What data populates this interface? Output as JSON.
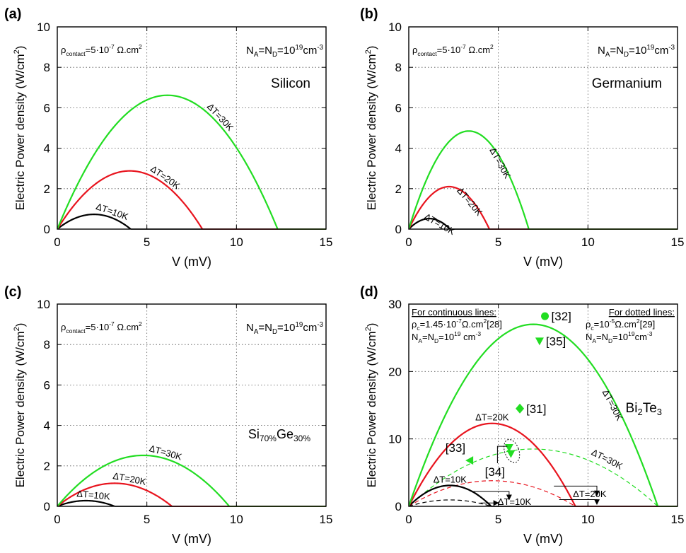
{
  "chart_data": [
    {
      "panel": "(a)",
      "type": "line",
      "xlabel": "V (mV)",
      "ylabel": "Electric Power density (W/cm²)",
      "xlim": [
        0,
        15
      ],
      "ylim": [
        0,
        10
      ],
      "xticks": [
        0,
        5,
        10,
        15
      ],
      "yticks": [
        0,
        2,
        4,
        6,
        8,
        10
      ],
      "grid": true,
      "annotations": {
        "contact": {
          "pre": "ρ",
          "sub": "contact",
          "post": "=5·10",
          "sup": "-7",
          "tail": " Ω.cm",
          "sup2": "2"
        },
        "doping": {
          "a": "N",
          "a_sub": "A",
          "b": "=N",
          "b_sub": "D",
          "c": "=10",
          "c_sup": "19",
          "d": "cm",
          "d_sup": "-3"
        },
        "material": "Silicon"
      },
      "series": [
        {
          "label": "ΔT=10K",
          "color": "#000000",
          "style": "solid",
          "x0": 0,
          "x1": 4.1,
          "peak": 0.73
        },
        {
          "label": "ΔT=20K",
          "color": "#e8141e",
          "style": "solid",
          "x0": 0,
          "x1": 8.1,
          "peak": 2.88
        },
        {
          "label": "ΔT=30K",
          "color": "#22dd22",
          "style": "solid",
          "x0": 0,
          "x1": 12.3,
          "peak": 6.62
        }
      ]
    },
    {
      "panel": "(b)",
      "type": "line",
      "xlabel": "V (mV)",
      "ylabel": "Electric Power density (W/cm²)",
      "xlim": [
        0,
        15
      ],
      "ylim": [
        0,
        10
      ],
      "xticks": [
        0,
        5,
        10,
        15
      ],
      "yticks": [
        0,
        2,
        4,
        6,
        8,
        10
      ],
      "grid": true,
      "annotations": {
        "contact": {
          "pre": "ρ",
          "sub": "contact",
          "post": "=5·10",
          "sup": "-7",
          "tail": " Ω.cm",
          "sup2": "2"
        },
        "doping": {
          "a": "N",
          "a_sub": "A",
          "b": "=N",
          "b_sub": "D",
          "c": "=10",
          "c_sup": "19",
          "d": "cm",
          "d_sup": "-3"
        },
        "material": "Germanium"
      },
      "series": [
        {
          "label": "ΔT=10K",
          "color": "#000000",
          "style": "solid",
          "x0": 0,
          "x1": 2.3,
          "peak": 0.52
        },
        {
          "label": "ΔT=20K",
          "color": "#e8141e",
          "style": "solid",
          "x0": 0,
          "x1": 4.5,
          "peak": 2.1
        },
        {
          "label": "ΔT=30K",
          "color": "#22dd22",
          "style": "solid",
          "x0": 0,
          "x1": 6.7,
          "peak": 4.85
        }
      ]
    },
    {
      "panel": "(c)",
      "type": "line",
      "xlabel": "V (mV)",
      "ylabel": "Electric Power density (W/cm²)",
      "xlim": [
        0,
        15
      ],
      "ylim": [
        0,
        10
      ],
      "xticks": [
        0,
        5,
        10,
        15
      ],
      "yticks": [
        0,
        2,
        4,
        6,
        8,
        10
      ],
      "grid": true,
      "annotations": {
        "contact": {
          "pre": "ρ",
          "sub": "contact",
          "post": "=5·10",
          "sup": "-7",
          "tail": " Ω.cm",
          "sup2": "2"
        },
        "doping": {
          "a": "N",
          "a_sub": "A",
          "b": "=N",
          "b_sub": "D",
          "c": "=10",
          "c_sup": "19",
          "d": "cm",
          "d_sup": "-3"
        },
        "material": {
          "a": "Si",
          "a_sub": "70%",
          "b": "Ge",
          "b_sub": "30%"
        }
      },
      "series": [
        {
          "label": "ΔT=10K",
          "color": "#000000",
          "style": "solid",
          "x0": 0,
          "x1": 3.2,
          "peak": 0.28
        },
        {
          "label": "ΔT=20K",
          "color": "#e8141e",
          "style": "solid",
          "x0": 0,
          "x1": 6.4,
          "peak": 1.14
        },
        {
          "label": "ΔT=30K",
          "color": "#22dd22",
          "style": "solid",
          "x0": 0,
          "x1": 9.6,
          "peak": 2.52
        }
      ]
    },
    {
      "panel": "(d)",
      "type": "line",
      "xlabel": "V (mV)",
      "ylabel": "Electric Power density (W/cm²)",
      "xlim": [
        0,
        15
      ],
      "ylim": [
        0,
        30
      ],
      "xticks": [
        0,
        5,
        10,
        15
      ],
      "yticks": [
        0,
        10,
        20,
        30
      ],
      "grid": true,
      "annotations": {
        "continuous_head": "For continuous lines:",
        "continuous_rho": {
          "pre": "ρ",
          "sub": "c",
          "post": "=1.45·10",
          "sup": "-7",
          "tail": "Ω.cm",
          "sup2": "2",
          "ref": "[28]"
        },
        "continuous_doping": {
          "a": "N",
          "a_sub": "A",
          "b": "=N",
          "b_sub": "D",
          "c": "=10",
          "c_sup": "19",
          "d": " cm",
          "d_sup": "-3"
        },
        "dotted_head": "For dotted lines:",
        "dotted_rho": {
          "pre": "ρ",
          "sub": "c",
          "post": "=10",
          "sup": "-5",
          "tail": "Ω.cm",
          "sup2": "2",
          "ref": "[29]"
        },
        "dotted_doping": {
          "a": "N",
          "a_sub": "A",
          "b": "=N",
          "b_sub": "D",
          "c": "=10",
          "c_sup": "19",
          "d": "cm",
          "d_sup": "-3"
        },
        "material": {
          "a": "Bi",
          "a_sub": "2",
          "b": "Te",
          "b_sub": "3"
        }
      },
      "series": [
        {
          "label": "ΔT=10K",
          "color": "#000000",
          "style": "solid",
          "x0": 0,
          "x1": 4.6,
          "peak": 3.1
        },
        {
          "label": "ΔT=20K",
          "color": "#e8141e",
          "style": "solid",
          "x0": 0,
          "x1": 9.3,
          "peak": 12.3
        },
        {
          "label": "ΔT=30K",
          "color": "#22dd22",
          "style": "solid",
          "x0": 0,
          "x1": 13.9,
          "peak": 27.0
        },
        {
          "label": "",
          "color": "#000000",
          "style": "dashed",
          "x0": 0,
          "x1": 4.6,
          "peak": 0.95
        },
        {
          "label": "",
          "color": "#e8141e",
          "style": "dashed",
          "x0": 0,
          "x1": 9.3,
          "peak": 3.8
        },
        {
          "label": "ΔT=30K",
          "color": "#22dd22",
          "style": "dashed",
          "x0": 0,
          "x1": 13.9,
          "peak": 8.5
        }
      ],
      "dashed_labels": [
        "ΔT=10K",
        "ΔT=20K"
      ],
      "points": [
        {
          "label": "[32]",
          "x": 7.6,
          "y": 28.2,
          "marker": "circle"
        },
        {
          "label": "[35]",
          "x": 7.3,
          "y": 24.5,
          "marker": "triangle-down"
        },
        {
          "label": "[31]",
          "x": 6.2,
          "y": 14.5,
          "marker": "diamond"
        },
        {
          "label": "[33]",
          "x": 3.4,
          "y": 6.8,
          "marker": "triangle-left"
        },
        {
          "label": "[34]",
          "x": 5.6,
          "y": 8.7,
          "marker": "triangle-down"
        },
        {
          "label": "",
          "x": 5.7,
          "y": 7.8,
          "marker": "triangle-down"
        }
      ]
    }
  ]
}
